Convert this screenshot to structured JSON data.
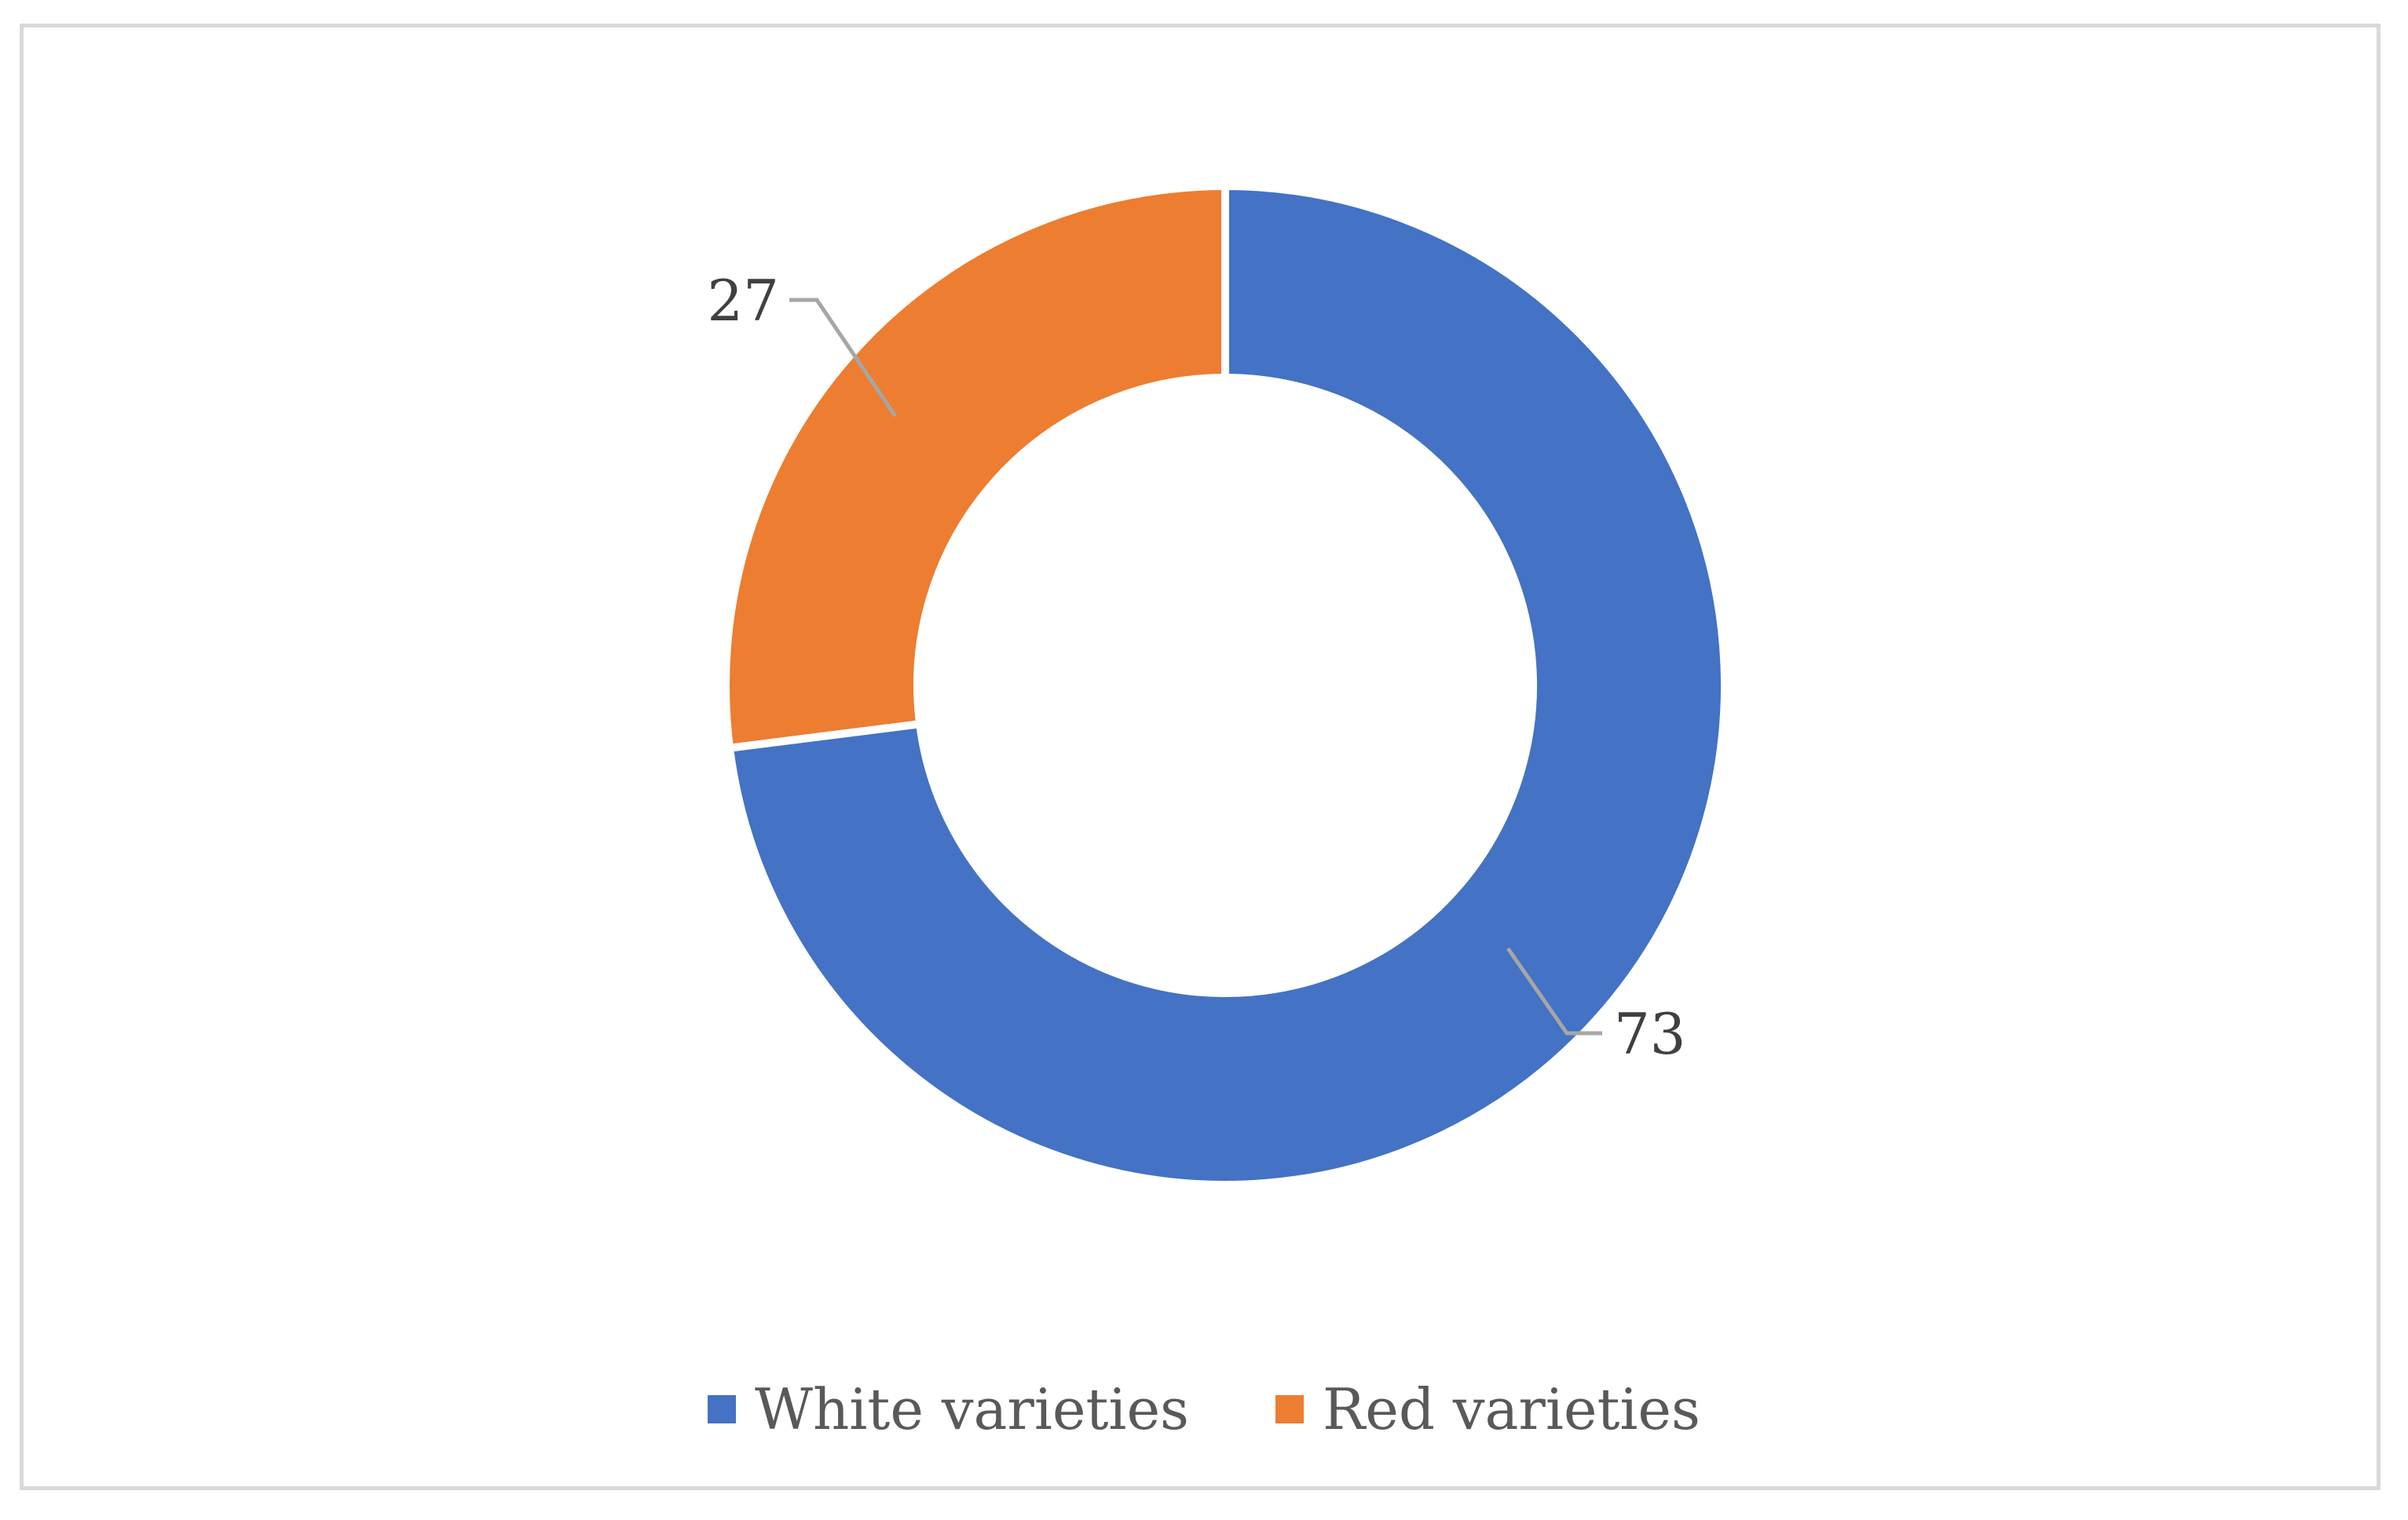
{
  "chart_data": {
    "type": "pie",
    "variant": "donut",
    "title": "",
    "slices": [
      {
        "label": "White varieties",
        "value": 73,
        "display": "73",
        "color": "#4472C4"
      },
      {
        "label": "Red varieties",
        "value": 27,
        "display": "27",
        "color": "#ED7D31"
      }
    ],
    "legend": {
      "placement": "bottom",
      "items": [
        {
          "label": "White varieties",
          "color": "#4472C4"
        },
        {
          "label": "Red varieties",
          "color": "#ED7D31"
        }
      ]
    },
    "leader_line_color": "#a6a6a6",
    "border_color": "#d9d9d9"
  }
}
